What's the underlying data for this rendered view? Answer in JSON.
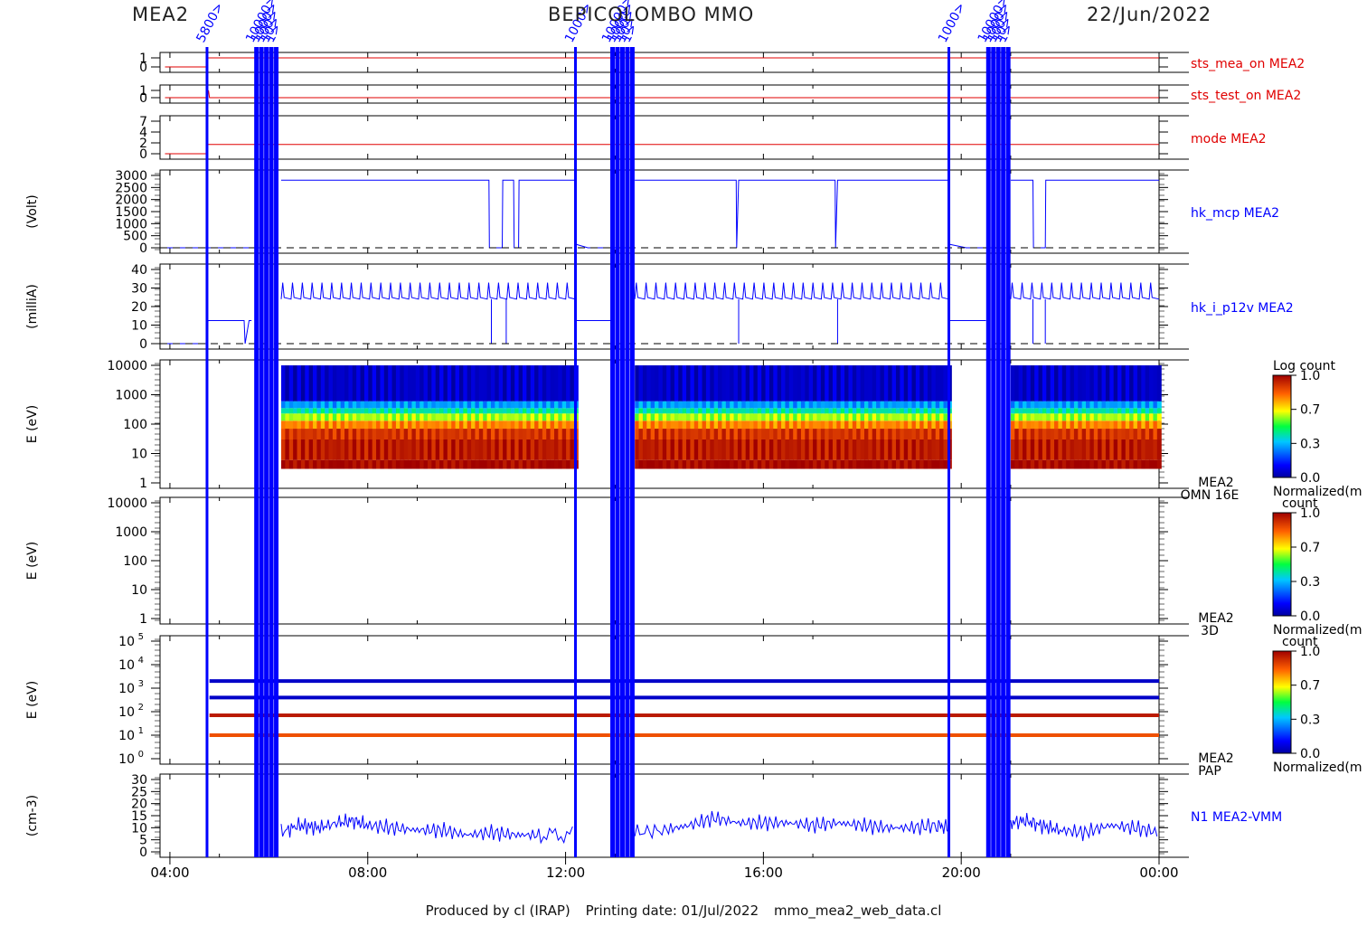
{
  "header": {
    "instrument": "MEA2",
    "mission": "BEPICOLOMBO MMO",
    "date": "22/Jun/2022"
  },
  "footer": {
    "produced_by": "Produced by cl (IRAP)",
    "printing_date": "Printing date: 01/Jul/2022",
    "script_name": "mmo_mea2_web_data.cl"
  },
  "colors": {
    "data_blue": "#0000ff",
    "data_red": "#e00000",
    "frame": "#000000",
    "mode_overlay": "#ff0000"
  },
  "time_axis": {
    "start_hour": 3.8,
    "end_hour": 24.0,
    "ticks": [
      {
        "hour": 4,
        "label": "04:00"
      },
      {
        "hour": 8,
        "label": "08:00"
      },
      {
        "hour": 12,
        "label": "12:00"
      },
      {
        "hour": 16,
        "label": "16:00"
      },
      {
        "hour": 20,
        "label": "20:00"
      },
      {
        "hour": 24,
        "label": "00:00"
      }
    ]
  },
  "event_markers": [
    {
      "hour": 4.75,
      "label": "5800>",
      "group": "a"
    },
    {
      "hour": 5.75,
      "label": "10000>",
      "group": "b"
    },
    {
      "hour": 5.85,
      "label": "1000>",
      "group": "b"
    },
    {
      "hour": 5.95,
      "label": "100>",
      "group": "b"
    },
    {
      "hour": 6.05,
      "label": "10>",
      "group": "b"
    },
    {
      "hour": 6.15,
      "label": "1>",
      "group": "b"
    },
    {
      "hour": 12.2,
      "label": "1000>",
      "group": "c"
    },
    {
      "hour": 12.95,
      "label": "10000>",
      "group": "d"
    },
    {
      "hour": 13.05,
      "label": "1000>",
      "group": "d"
    },
    {
      "hour": 13.15,
      "label": "100>",
      "group": "d"
    },
    {
      "hour": 13.25,
      "label": "10>",
      "group": "d"
    },
    {
      "hour": 13.35,
      "label": "1>",
      "group": "d"
    },
    {
      "hour": 19.75,
      "label": "1000>",
      "group": "e"
    },
    {
      "hour": 20.55,
      "label": "10000>",
      "group": "f"
    },
    {
      "hour": 20.65,
      "label": "1000>",
      "group": "f"
    },
    {
      "hour": 20.75,
      "label": "100>",
      "group": "f"
    },
    {
      "hour": 20.85,
      "label": "10>",
      "group": "f"
    },
    {
      "hour": 20.95,
      "label": "1>",
      "group": "f"
    }
  ],
  "panels": [
    {
      "id": "sts_mea_on",
      "label": "sts_mea_on MEA2",
      "label_color": "#e00000",
      "ylabel": "",
      "ticks": [
        "1",
        "0"
      ]
    },
    {
      "id": "sts_test_on",
      "label": "sts_test_on MEA2",
      "label_color": "#e00000",
      "ylabel": "",
      "ticks": [
        "1",
        "0"
      ]
    },
    {
      "id": "mode",
      "label": "mode MEA2",
      "label_color": "#e00000",
      "ylabel": "",
      "ticks": [
        "7",
        "4",
        "2",
        "0"
      ]
    },
    {
      "id": "hk_mcp",
      "label": "hk_mcp MEA2",
      "label_color": "#0000ff",
      "ylabel": "(Volt)",
      "ticks": [
        "3000",
        "2500",
        "2000",
        "1500",
        "1000",
        "500",
        "0"
      ]
    },
    {
      "id": "hk_i_p12v",
      "label": "hk_i_p12v MEA2",
      "label_color": "#0000ff",
      "ylabel": "(milliA)",
      "ticks": [
        "40",
        "30",
        "20",
        "10",
        "0"
      ]
    },
    {
      "id": "omn16e",
      "label": "MEA2",
      "label2": "OMN 16E",
      "label_color": "#000000",
      "ylabel": "E (eV)",
      "ticks": [
        "10000",
        "1000",
        "100",
        "10",
        "1"
      ]
    },
    {
      "id": "threeD",
      "label": "MEA2",
      "label2": "3D",
      "label_color": "#000000",
      "ylabel": "E (eV)",
      "ticks": [
        "10000",
        "1000",
        "100",
        "10",
        "1"
      ]
    },
    {
      "id": "pap",
      "label": "MEA2",
      "label2": "PAP",
      "label_color": "#000000",
      "ylabel": "E (eV)",
      "ticks": [
        "10^5",
        "10^4",
        "10^3",
        "10^2",
        "10^1",
        "10^0"
      ]
    },
    {
      "id": "n1",
      "label": "N1 MEA2-VMM",
      "label_color": "#0000ff",
      "ylabel": "(cm-3)",
      "ticks": [
        "30",
        "25",
        "20",
        "15",
        "10",
        "5",
        "0"
      ]
    }
  ],
  "colorbars": [
    {
      "title": "Log count",
      "ticks": [
        "1.0",
        "0.7",
        "0.3",
        "0.0"
      ],
      "bottom_label": "Normalized(m"
    },
    {
      "title": "count",
      "ticks": [
        "1.0",
        "0.7",
        "0.3",
        "0.0"
      ],
      "bottom_label": "Normalized(m"
    },
    {
      "title": "count",
      "ticks": [
        "1.0",
        "0.7",
        "0.3",
        "0.0"
      ],
      "bottom_label": "Normalized(m"
    }
  ],
  "chart_data": [
    {
      "type": "line",
      "title": "sts_mea_on MEA2",
      "x": [
        3.9,
        4.75,
        4.76,
        24.0
      ],
      "y": [
        0,
        0,
        1,
        1
      ],
      "ylim": [
        0,
        1
      ]
    },
    {
      "type": "line",
      "title": "sts_test_on MEA2",
      "x": [
        3.9,
        4.75,
        4.78,
        4.8,
        24.0
      ],
      "y": [
        0,
        0,
        1,
        0,
        0
      ],
      "ylim": [
        0,
        1
      ]
    },
    {
      "type": "line",
      "title": "mode MEA2",
      "x": [
        3.9,
        4.75,
        4.76,
        24.0
      ],
      "y": [
        0,
        0,
        2,
        2
      ],
      "ylim": [
        0,
        7
      ]
    },
    {
      "type": "line",
      "title": "hk_mcp MEA2",
      "ylabel": "(Volt)",
      "ylim": [
        0,
        3000
      ],
      "segments": [
        {
          "x": [
            3.9,
            6.25
          ],
          "y": [
            0,
            0
          ]
        },
        {
          "x": [
            6.25,
            10.45,
            10.46,
            10.72,
            10.73,
            10.95,
            10.96,
            11.05,
            11.06,
            12.2
          ],
          "y": [
            2800,
            2800,
            0,
            0,
            2800,
            2800,
            0,
            0,
            2800,
            2800
          ]
        },
        {
          "x": [
            12.2,
            12.45,
            13.4
          ],
          "y": [
            150,
            0,
            0
          ]
        },
        {
          "x": [
            13.4,
            15.45,
            15.46,
            15.5,
            17.45,
            17.46,
            17.5,
            19.75
          ],
          "y": [
            2800,
            2800,
            0,
            2800,
            2800,
            0,
            2800,
            2800
          ]
        },
        {
          "x": [
            19.75,
            20.1,
            21.0
          ],
          "y": [
            150,
            0,
            0
          ]
        },
        {
          "x": [
            21.0,
            21.45,
            21.46,
            21.7,
            21.71,
            24.0
          ],
          "y": [
            2800,
            2800,
            0,
            0,
            2800,
            2800
          ]
        }
      ],
      "baseline": 0
    },
    {
      "type": "line",
      "title": "hk_i_p12v MEA2",
      "ylabel": "(milliA)",
      "ylim": [
        0,
        45
      ],
      "segments": [
        {
          "x": [
            3.9,
            4.75,
            4.77,
            5.5,
            5.52,
            5.6,
            5.65
          ],
          "y": [
            0,
            0,
            14,
            14,
            0,
            14,
            14
          ]
        },
        {
          "x": [
            6.25,
            12.2
          ],
          "y": [
            27,
            27
          ],
          "spiky": true,
          "spike_to": 37
        },
        {
          "x": [
            12.2,
            12.95
          ],
          "y": [
            14,
            14
          ]
        },
        {
          "x": [
            13.4,
            19.75
          ],
          "y": [
            27,
            27
          ],
          "spiky": true,
          "spike_to": 37
        },
        {
          "x": [
            19.75,
            20.5
          ],
          "y": [
            14,
            14
          ]
        },
        {
          "x": [
            21.0,
            24.0
          ],
          "y": [
            27,
            27
          ],
          "spiky": true,
          "spike_to": 37
        }
      ],
      "dips_to_zero": [
        10.5,
        10.8,
        15.5,
        17.5,
        21.45,
        21.7
      ],
      "baseline": 0
    },
    {
      "type": "heatmap",
      "title": "MEA2 OMN 16E",
      "ylabel": "E (eV)",
      "ylim": [
        1,
        10000
      ],
      "yscale": "log",
      "active_intervals": [
        [
          6.25,
          12.2
        ],
        [
          13.4,
          19.75
        ],
        [
          21.0,
          24.0
        ]
      ],
      "energy_bands": [
        {
          "from": 3,
          "to": 6,
          "value": 1.0
        },
        {
          "from": 6,
          "to": 30,
          "value": 0.95
        },
        {
          "from": 30,
          "to": 70,
          "value": 0.9
        },
        {
          "from": 70,
          "to": 130,
          "value": 0.78
        },
        {
          "from": 130,
          "to": 230,
          "value": 0.6
        },
        {
          "from": 230,
          "to": 350,
          "value": 0.42
        },
        {
          "from": 350,
          "to": 600,
          "value": 0.3
        },
        {
          "from": 600,
          "to": 10000,
          "value": 0.05
        }
      ]
    },
    {
      "type": "heatmap",
      "title": "MEA2 3D",
      "ylabel": "E (eV)",
      "ylim": [
        1,
        10000
      ],
      "yscale": "log",
      "empty": true
    },
    {
      "type": "heatmap",
      "title": "MEA2 PAP",
      "ylabel": "E (eV)",
      "ylim": [
        1,
        100000
      ],
      "yscale": "log",
      "lines": [
        {
          "energy": 2000,
          "value": 0.05
        },
        {
          "energy": 400,
          "value": 0.05
        },
        {
          "energy": 70,
          "value": 0.95
        },
        {
          "energy": 10,
          "value": 0.85
        }
      ],
      "active_from": 4.8
    },
    {
      "type": "line",
      "title": "N1 MEA2-VMM",
      "ylabel": "(cm-3)",
      "ylim": [
        0,
        30
      ],
      "segments": [
        {
          "x": [
            6.25,
            6.6,
            7.0,
            7.4,
            7.7,
            8.0,
            8.5,
            9.0,
            9.5,
            10.0,
            10.5,
            11.0,
            11.5,
            12.2
          ],
          "y": [
            8,
            11,
            10,
            12,
            13,
            11,
            10,
            9,
            9,
            7,
            8,
            7,
            7,
            7
          ]
        },
        {
          "x": [
            13.4,
            14.0,
            14.5,
            15.0,
            15.5,
            16.0,
            16.5,
            17.0,
            17.5,
            18.0,
            18.5,
            19.0,
            19.5,
            19.75
          ],
          "y": [
            8,
            9,
            11,
            14,
            12,
            12,
            12,
            11,
            12,
            11,
            10,
            10,
            11,
            10
          ]
        },
        {
          "x": [
            21.0,
            21.3,
            21.6,
            22.0,
            22.5,
            23.0,
            23.5,
            24.0
          ],
          "y": [
            12,
            13,
            11,
            9,
            8,
            11,
            10,
            8
          ]
        }
      ]
    }
  ]
}
